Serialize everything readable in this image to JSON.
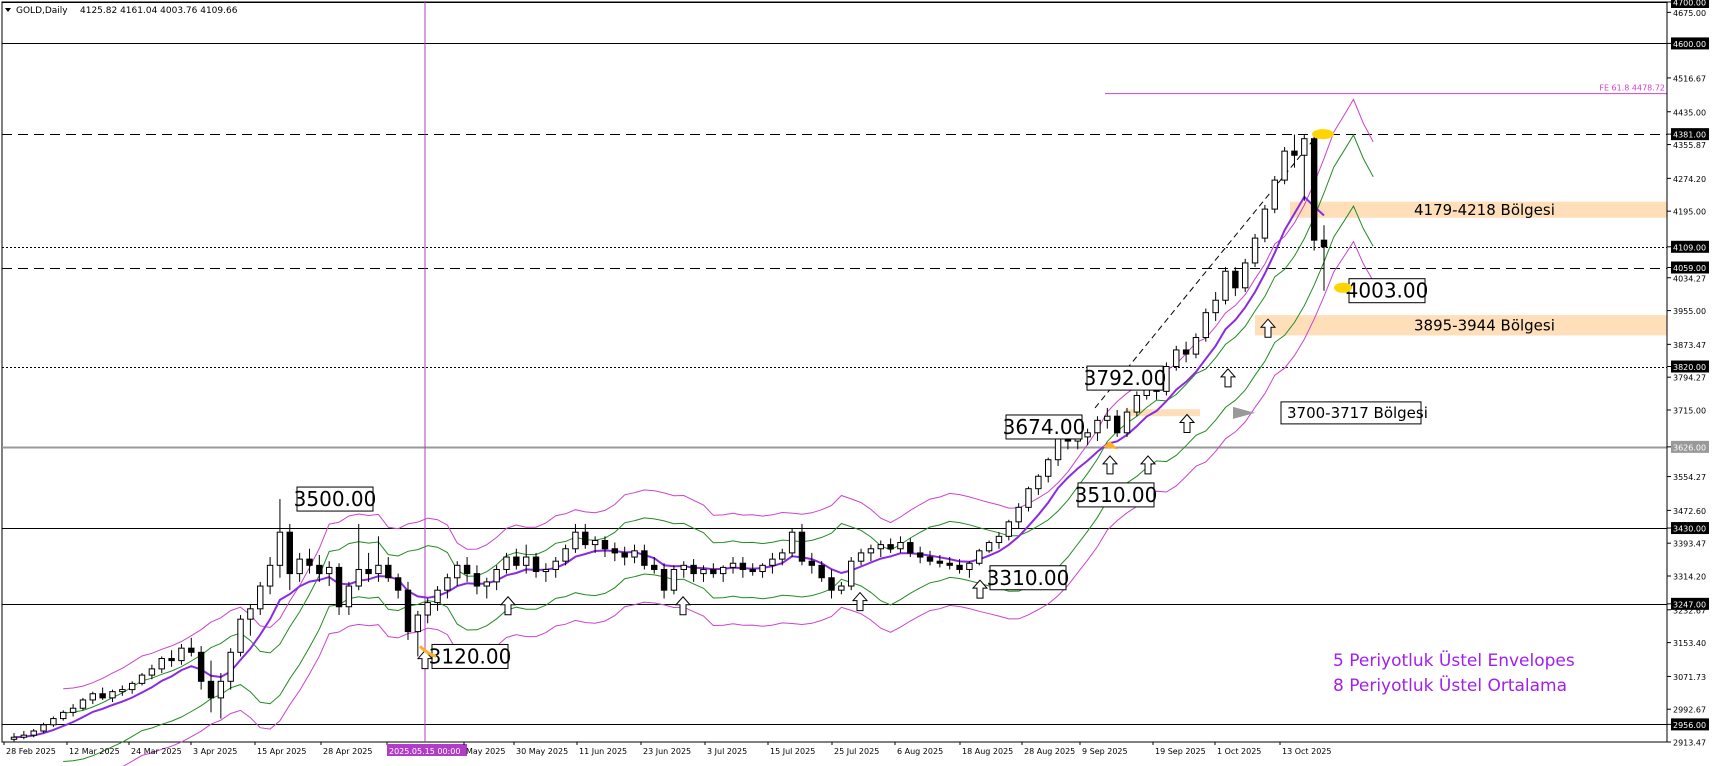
{
  "header": {
    "symbol": "GOLD,Daily",
    "ohlc": "4125.82 4161.04 4003.76 4109.66"
  },
  "legend": {
    "line1": "5 Periyotluk Üstel Envelopes",
    "line2": "8 Periyotluk Üstel Ortalama"
  },
  "colors": {
    "candle_up": "#ffffff",
    "candle_down": "#000000",
    "ema": "#8a2be2",
    "env_inner": "#228b22",
    "env_outer": "#cc44cc",
    "zone": "#ffd8ae",
    "marker": "#ffb020",
    "fe_line": "#cc44cc",
    "date_highlight": "#b03cc8"
  },
  "chart_data": {
    "type": "candlestick",
    "title": "",
    "y_axis": {
      "min": 2913.47,
      "max": 4700.0,
      "ticks": [
        "4700.00",
        "4675.00",
        "4600.00",
        "4516.67",
        "4435.00",
        "4381.00",
        "4355.87",
        "4274.20",
        "4195.00",
        "4109.00",
        "4059.00",
        "4034.27",
        "3955.00",
        "3873.47",
        "3820.00",
        "3794.27",
        "3715.00",
        "3626.00",
        "3554.27",
        "3472.60",
        "3430.00",
        "3393.47",
        "3314.20",
        "3247.00",
        "3232.67",
        "3153.40",
        "3071.73",
        "2992.67",
        "2956.00",
        "2913.47"
      ],
      "highlighted_ticks": [
        "4700.00",
        "4600.00",
        "4381.00",
        "4109.00",
        "4059.00",
        "3820.00",
        "3626.00",
        "3430.00",
        "3247.00",
        "2956.00"
      ]
    },
    "x_axis": {
      "labels": [
        "28 Feb 2025",
        "12 Mar 2025",
        "24 Mar 2025",
        "3 Apr 2025",
        "15 Apr 2025",
        "28 Apr 2025",
        "2025.05.15 00:00",
        "May 2025",
        "30 May 2025",
        "11 Jun 2025",
        "23 Jun 2025",
        "3 Jul 2025",
        "15 Jul 2025",
        "25 Jul 2025",
        "6 Aug 2025",
        "18 Aug 2025",
        "28 Aug 2025",
        "9 Sep 2025",
        "19 Sep 2025",
        "1 Oct 2025",
        "13 Oct 2025"
      ],
      "highlighted_label": "2025.05.15 00:00"
    },
    "horizontal_levels": [
      {
        "price": 4700.0,
        "style": "solid"
      },
      {
        "price": 4600.0,
        "style": "solid"
      },
      {
        "price": 4381.0,
        "style": "dashed"
      },
      {
        "price": 4109.0,
        "style": "dotted"
      },
      {
        "price": 4059.0,
        "style": "dashed"
      },
      {
        "price": 3820.0,
        "style": "dotted"
      },
      {
        "price": 3626.0,
        "style": "solid-gray"
      },
      {
        "price": 3430.0,
        "style": "solid"
      },
      {
        "price": 3247.0,
        "style": "solid"
      },
      {
        "price": 2956.0,
        "style": "solid"
      }
    ],
    "fibonacci": {
      "label": "FE 61.8 4478.72",
      "price": 4478.72
    },
    "zones": [
      {
        "label": "4179-4218 Bölgesi",
        "low": 4179,
        "high": 4218
      },
      {
        "label": "3895-3944 Bölgesi",
        "low": 3895,
        "high": 3944
      },
      {
        "label": "3700-3717 Bölgesi",
        "low": 3700,
        "high": 3717
      }
    ],
    "price_labels": [
      {
        "text": "3500.00",
        "price": 3500
      },
      {
        "text": "3120.00",
        "price": 3120
      },
      {
        "text": "3310.00",
        "price": 3310
      },
      {
        "text": "3510.00",
        "price": 3510
      },
      {
        "text": "3674.00",
        "price": 3674
      },
      {
        "text": "3792.00",
        "price": 3792
      },
      {
        "text": "4003.00",
        "price": 4003
      }
    ],
    "candles": [
      [
        2920,
        2935,
        2915,
        2925
      ],
      [
        2925,
        2940,
        2920,
        2930
      ],
      [
        2930,
        2945,
        2925,
        2940
      ],
      [
        2940,
        2960,
        2935,
        2955
      ],
      [
        2955,
        2975,
        2950,
        2970
      ],
      [
        2970,
        2990,
        2965,
        2985
      ],
      [
        2985,
        3005,
        2975,
        2995
      ],
      [
        2995,
        3020,
        2990,
        3015
      ],
      [
        3015,
        3035,
        3005,
        3030
      ],
      [
        3030,
        3045,
        3015,
        3020
      ],
      [
        3020,
        3040,
        3010,
        3035
      ],
      [
        3035,
        3050,
        3025,
        3040
      ],
      [
        3040,
        3060,
        3030,
        3055
      ],
      [
        3055,
        3080,
        3050,
        3075
      ],
      [
        3075,
        3100,
        3065,
        3090
      ],
      [
        3090,
        3120,
        3080,
        3115
      ],
      [
        3115,
        3135,
        3095,
        3110
      ],
      [
        3110,
        3150,
        3100,
        3140
      ],
      [
        3140,
        3165,
        3120,
        3130
      ],
      [
        3130,
        3145,
        3040,
        3060
      ],
      [
        3060,
        3110,
        2985,
        3020
      ],
      [
        3020,
        3080,
        2970,
        3060
      ],
      [
        3060,
        3140,
        3040,
        3130
      ],
      [
        3130,
        3220,
        3120,
        3210
      ],
      [
        3210,
        3245,
        3170,
        3235
      ],
      [
        3235,
        3300,
        3220,
        3290
      ],
      [
        3290,
        3360,
        3270,
        3340
      ],
      [
        3340,
        3500,
        3310,
        3420
      ],
      [
        3420,
        3440,
        3280,
        3320
      ],
      [
        3320,
        3370,
        3300,
        3355
      ],
      [
        3355,
        3380,
        3320,
        3340
      ],
      [
        3340,
        3365,
        3300,
        3320
      ],
      [
        3320,
        3350,
        3290,
        3335
      ],
      [
        3335,
        3345,
        3220,
        3240
      ],
      [
        3240,
        3300,
        3220,
        3290
      ],
      [
        3290,
        3440,
        3280,
        3330
      ],
      [
        3330,
        3370,
        3300,
        3320
      ],
      [
        3320,
        3410,
        3300,
        3340
      ],
      [
        3340,
        3360,
        3300,
        3310
      ],
      [
        3310,
        3320,
        3260,
        3280
      ],
      [
        3280,
        3300,
        3160,
        3180
      ],
      [
        3180,
        3230,
        3120,
        3220
      ],
      [
        3220,
        3260,
        3200,
        3250
      ],
      [
        3250,
        3290,
        3230,
        3280
      ],
      [
        3280,
        3320,
        3260,
        3310
      ],
      [
        3310,
        3350,
        3290,
        3340
      ],
      [
        3340,
        3360,
        3300,
        3320
      ],
      [
        3320,
        3340,
        3270,
        3290
      ],
      [
        3290,
        3310,
        3260,
        3300
      ],
      [
        3300,
        3340,
        3280,
        3330
      ],
      [
        3330,
        3370,
        3320,
        3360
      ],
      [
        3360,
        3380,
        3330,
        3340
      ],
      [
        3340,
        3390,
        3320,
        3360
      ],
      [
        3360,
        3370,
        3310,
        3325
      ],
      [
        3325,
        3345,
        3300,
        3330
      ],
      [
        3330,
        3360,
        3310,
        3350
      ],
      [
        3350,
        3390,
        3340,
        3380
      ],
      [
        3380,
        3440,
        3370,
        3420
      ],
      [
        3420,
        3440,
        3380,
        3390
      ],
      [
        3390,
        3410,
        3370,
        3400
      ],
      [
        3400,
        3410,
        3360,
        3380
      ],
      [
        3380,
        3395,
        3350,
        3370
      ],
      [
        3370,
        3385,
        3340,
        3360
      ],
      [
        3360,
        3390,
        3345,
        3375
      ],
      [
        3375,
        3390,
        3330,
        3340
      ],
      [
        3340,
        3360,
        3320,
        3330
      ],
      [
        3330,
        3345,
        3260,
        3280
      ],
      [
        3280,
        3340,
        3270,
        3330
      ],
      [
        3330,
        3350,
        3310,
        3340
      ],
      [
        3340,
        3355,
        3300,
        3320
      ],
      [
        3320,
        3340,
        3300,
        3330
      ],
      [
        3330,
        3345,
        3310,
        3320
      ],
      [
        3320,
        3340,
        3300,
        3335
      ],
      [
        3335,
        3360,
        3320,
        3345
      ],
      [
        3345,
        3360,
        3310,
        3330
      ],
      [
        3330,
        3345,
        3315,
        3325
      ],
      [
        3325,
        3345,
        3310,
        3340
      ],
      [
        3340,
        3370,
        3320,
        3355
      ],
      [
        3355,
        3380,
        3340,
        3370
      ],
      [
        3370,
        3430,
        3360,
        3420
      ],
      [
        3420,
        3440,
        3340,
        3350
      ],
      [
        3350,
        3370,
        3320,
        3340
      ],
      [
        3340,
        3350,
        3300,
        3310
      ],
      [
        3310,
        3330,
        3260,
        3280
      ],
      [
        3280,
        3300,
        3270,
        3290
      ],
      [
        3290,
        3360,
        3280,
        3350
      ],
      [
        3350,
        3380,
        3340,
        3370
      ],
      [
        3370,
        3390,
        3350,
        3380
      ],
      [
        3380,
        3400,
        3360,
        3390
      ],
      [
        3390,
        3405,
        3370,
        3380
      ],
      [
        3380,
        3410,
        3370,
        3395
      ],
      [
        3395,
        3405,
        3360,
        3370
      ],
      [
        3370,
        3385,
        3345,
        3360
      ],
      [
        3360,
        3375,
        3340,
        3350
      ],
      [
        3350,
        3365,
        3335,
        3345
      ],
      [
        3345,
        3360,
        3330,
        3340
      ],
      [
        3340,
        3355,
        3320,
        3330
      ],
      [
        3330,
        3350,
        3310,
        3345
      ],
      [
        3345,
        3380,
        3340,
        3375
      ],
      [
        3375,
        3400,
        3370,
        3395
      ],
      [
        3395,
        3420,
        3380,
        3410
      ],
      [
        3410,
        3450,
        3400,
        3445
      ],
      [
        3445,
        3490,
        3430,
        3480
      ],
      [
        3480,
        3530,
        3470,
        3525
      ],
      [
        3525,
        3560,
        3510,
        3555
      ],
      [
        3555,
        3600,
        3540,
        3595
      ],
      [
        3595,
        3660,
        3580,
        3650
      ],
      [
        3650,
        3674,
        3620,
        3640
      ],
      [
        3640,
        3660,
        3620,
        3650
      ],
      [
        3650,
        3670,
        3630,
        3660
      ],
      [
        3660,
        3700,
        3640,
        3690
      ],
      [
        3690,
        3720,
        3670,
        3700
      ],
      [
        3700,
        3715,
        3650,
        3660
      ],
      [
        3660,
        3720,
        3650,
        3710
      ],
      [
        3710,
        3760,
        3700,
        3750
      ],
      [
        3750,
        3792,
        3740,
        3780
      ],
      [
        3780,
        3800,
        3740,
        3760
      ],
      [
        3760,
        3830,
        3750,
        3820
      ],
      [
        3820,
        3870,
        3810,
        3860
      ],
      [
        3860,
        3880,
        3830,
        3850
      ],
      [
        3850,
        3900,
        3840,
        3890
      ],
      [
        3890,
        3960,
        3880,
        3950
      ],
      [
        3950,
        4000,
        3930,
        3980
      ],
      [
        3980,
        4060,
        3970,
        4050
      ],
      [
        4050,
        4060,
        3990,
        4010
      ],
      [
        4010,
        4080,
        4000,
        4070
      ],
      [
        4070,
        4140,
        4060,
        4130
      ],
      [
        4130,
        4210,
        4120,
        4200
      ],
      [
        4200,
        4280,
        4190,
        4270
      ],
      [
        4270,
        4350,
        4260,
        4340
      ],
      [
        4340,
        4380,
        4300,
        4330
      ],
      [
        4330,
        4381,
        4220,
        4370
      ],
      [
        4370,
        4380,
        4100,
        4125
      ],
      [
        4125,
        4161,
        4003,
        4109
      ]
    ],
    "ema8": "8 period exponential moving average",
    "envelopes": "5 period exponential envelopes"
  }
}
